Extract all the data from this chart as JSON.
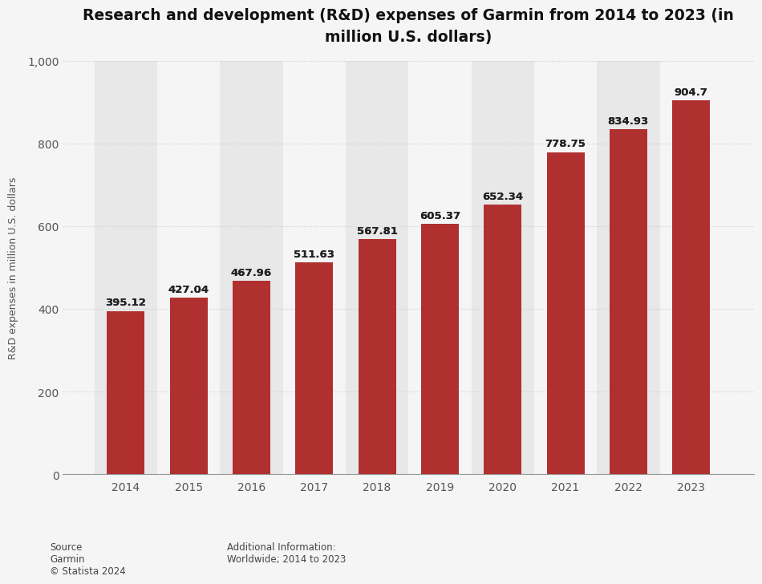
{
  "title": "Research and development (R&D) expenses of Garmin from 2014 to 2023 (in\nmillion U.S. dollars)",
  "years": [
    2014,
    2015,
    2016,
    2017,
    2018,
    2019,
    2020,
    2021,
    2022,
    2023
  ],
  "values": [
    395.12,
    427.04,
    467.96,
    511.63,
    567.81,
    605.37,
    652.34,
    778.75,
    834.93,
    904.7
  ],
  "bar_color": "#B03030",
  "ylabel": "R&D expenses in million U.S. dollars",
  "ylim": [
    0,
    1000
  ],
  "yticks": [
    0,
    200,
    400,
    600,
    800,
    1000
  ],
  "plot_bg_color": "#f5f5f5",
  "fig_bg_color": "#f5f5f5",
  "source_text": "Source\nGarmin\n© Statista 2024",
  "additional_text": "Additional Information:\nWorldwide; 2014 to 2023",
  "title_fontsize": 13.5,
  "label_fontsize": 9,
  "tick_fontsize": 10,
  "value_fontsize": 9.5
}
